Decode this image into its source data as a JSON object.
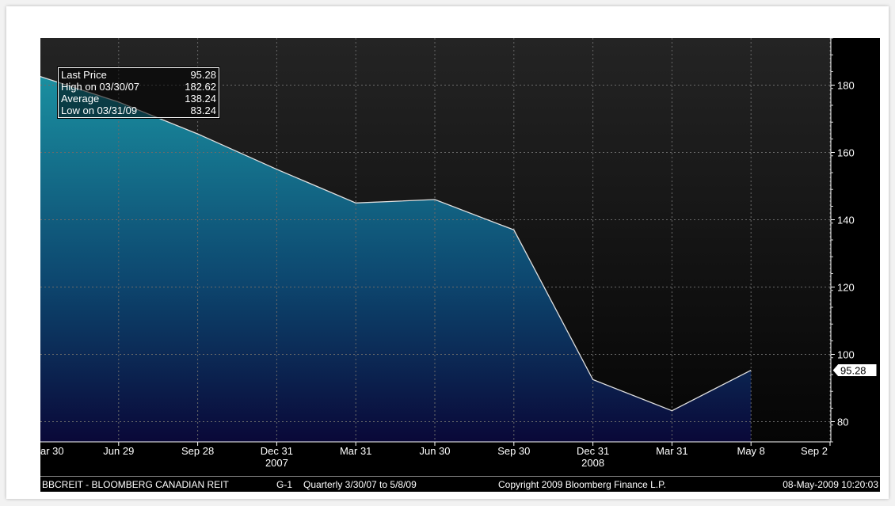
{
  "legend": {
    "rows": [
      {
        "label": "Last Price",
        "value": "95.28"
      },
      {
        "label": "High on  03/30/07",
        "value": "182.62"
      },
      {
        "label": "Average",
        "value": "138.24"
      },
      {
        "label": "Low on  03/31/09",
        "value": "83.24"
      }
    ]
  },
  "footer": {
    "ticker": "BBCREIT - BLOOMBERG CANADIAN REIT",
    "chart_id": "G-1",
    "range": "Quarterly  3/30/07 to 5/8/09",
    "copyright": "Copyright 2009 Bloomberg Finance L.P.",
    "timestamp": "08-May-2009 10:20:03"
  },
  "colors": {
    "background": "#000000",
    "plot_bg_top": "#202020",
    "area_top": "#157f8f",
    "area_bottom": "#08083a",
    "line": "#e0e0e0",
    "grid": "#6a6a6a",
    "text": "#ffffff"
  },
  "chart_data": {
    "type": "area",
    "x_ticks": [
      "ar 30",
      "Jun 29",
      "Sep 28",
      "Dec 31",
      "Mar 31",
      "Jun 30",
      "Sep 30",
      "Dec 31",
      "Mar 31",
      "May 8",
      "Sep 2"
    ],
    "year_labels": [
      {
        "tick_index": 3,
        "label": "2007"
      },
      {
        "tick_index": 7,
        "label": "2008"
      }
    ],
    "x": [
      "03/30/07",
      "06/29/07",
      "09/28/07",
      "12/31/07",
      "03/31/08",
      "06/30/08",
      "09/30/08",
      "12/31/08",
      "03/31/09",
      "05/08/09"
    ],
    "values": [
      182.62,
      175,
      165.5,
      155,
      145,
      146,
      137,
      92.5,
      83.24,
      95.28
    ],
    "yticks": [
      80,
      100,
      120,
      140,
      160,
      180
    ],
    "ylim": [
      74,
      194
    ],
    "last_price_label": "95.28",
    "grid": true,
    "y_axis_side": "right"
  }
}
